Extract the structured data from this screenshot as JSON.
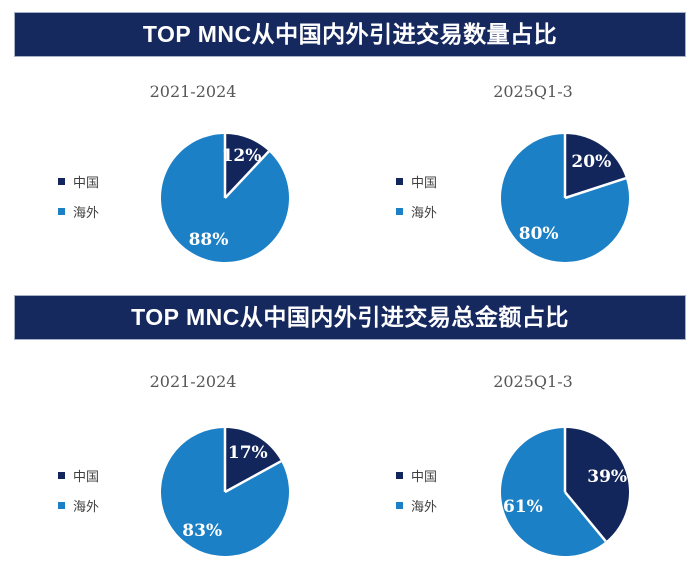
{
  "page": {
    "banners": [
      {
        "title": "TOP MNC从中国内外引进交易数量占比"
      },
      {
        "title": "TOP MNC从中国内外引进交易总金额占比"
      }
    ]
  },
  "colors": {
    "banner_bg": "#16295F",
    "banner_border": "#A6B0CB",
    "banner_text": "#FFFFFF",
    "china": "#12265C",
    "overseas": "#1C80C6",
    "period_text": "#575757",
    "legend_text": "#3F3F3F",
    "slice_label_text": "#FFFFFF"
  },
  "chart_data": [
    {
      "type": "pie",
      "group_title": "TOP MNC从中国内外引进交易数量占比",
      "subtitle": "2021-2024",
      "categories": [
        "中国",
        "海外"
      ],
      "values": [
        12,
        88
      ],
      "value_labels": [
        "12%",
        "88%"
      ],
      "colors": [
        "#12265C",
        "#1C80C6"
      ],
      "legend_position": "left",
      "start_angle_deg": 0,
      "direction": "clockwise"
    },
    {
      "type": "pie",
      "group_title": "TOP MNC从中国内外引进交易数量占比",
      "subtitle": "2025Q1-3",
      "categories": [
        "中国",
        "海外"
      ],
      "values": [
        20,
        80
      ],
      "value_labels": [
        "20%",
        "80%"
      ],
      "colors": [
        "#12265C",
        "#1C80C6"
      ],
      "legend_position": "left",
      "start_angle_deg": 0,
      "direction": "clockwise"
    },
    {
      "type": "pie",
      "group_title": "TOP MNC从中国内外引进交易总金额占比",
      "subtitle": "2021-2024",
      "categories": [
        "中国",
        "海外"
      ],
      "values": [
        17,
        83
      ],
      "value_labels": [
        "17%",
        "83%"
      ],
      "colors": [
        "#12265C",
        "#1C80C6"
      ],
      "legend_position": "left",
      "start_angle_deg": 0,
      "direction": "clockwise"
    },
    {
      "type": "pie",
      "group_title": "TOP MNC从中国内外引进交易总金额占比",
      "subtitle": "2025Q1-3",
      "categories": [
        "中国",
        "海外"
      ],
      "values": [
        39,
        61
      ],
      "value_labels": [
        "39%",
        "61%"
      ],
      "colors": [
        "#12265C",
        "#1C80C6"
      ],
      "legend_position": "left",
      "start_angle_deg": 0,
      "direction": "clockwise"
    }
  ]
}
